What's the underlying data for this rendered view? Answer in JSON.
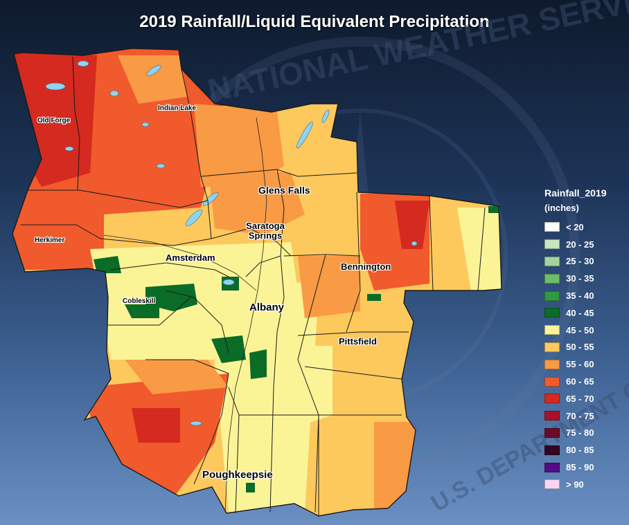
{
  "title": "2019 Rainfall/Liquid Equivalent Precipitation",
  "watermark": {
    "agency_text": "NATIONAL WEATHER SERVICE",
    "dept_text": "U.S. DEPARTMENT OF COMMERCE"
  },
  "legend": {
    "title": "Rainfall_2019",
    "units": "(inches)",
    "items": [
      {
        "label": "< 20",
        "color": "#ffffff"
      },
      {
        "label": "20 - 25",
        "color": "#c8e6c1"
      },
      {
        "label": "25 - 30",
        "color": "#a3d49a"
      },
      {
        "label": "30 - 35",
        "color": "#6cbd67"
      },
      {
        "label": "35 - 40",
        "color": "#2e9b3f"
      },
      {
        "label": "40 - 45",
        "color": "#0b6c28"
      },
      {
        "label": "45 - 50",
        "color": "#fbf497"
      },
      {
        "label": "50 - 55",
        "color": "#fdc95d"
      },
      {
        "label": "55 - 60",
        "color": "#f99a45"
      },
      {
        "label": "60 - 65",
        "color": "#f05a2c"
      },
      {
        "label": "65 - 70",
        "color": "#d42a1f"
      },
      {
        "label": "70 - 75",
        "color": "#a8112a"
      },
      {
        "label": "75 - 80",
        "color": "#6b0a26"
      },
      {
        "label": "80 - 85",
        "color": "#330522"
      },
      {
        "label": "85 - 90",
        "color": "#540c84"
      },
      {
        "label": "> 90",
        "color": "#f9d6f4"
      }
    ]
  },
  "cities": {
    "old_forge": "Old Forge",
    "indian_lake": "Indian Lake",
    "glens_falls": "Glens Falls",
    "saratoga_springs": "Saratoga Springs",
    "herkimer": "Herkimer",
    "amsterdam": "Amsterdam",
    "bennington": "Bennington",
    "cobleskill": "Cobleskill",
    "albany": "Albany",
    "pittsfield": "Pittsfield",
    "poughkeepsie": "Poughkeepsie"
  },
  "colors": {
    "water": "#8fd3f0",
    "boundary": "#1a1a1a"
  }
}
